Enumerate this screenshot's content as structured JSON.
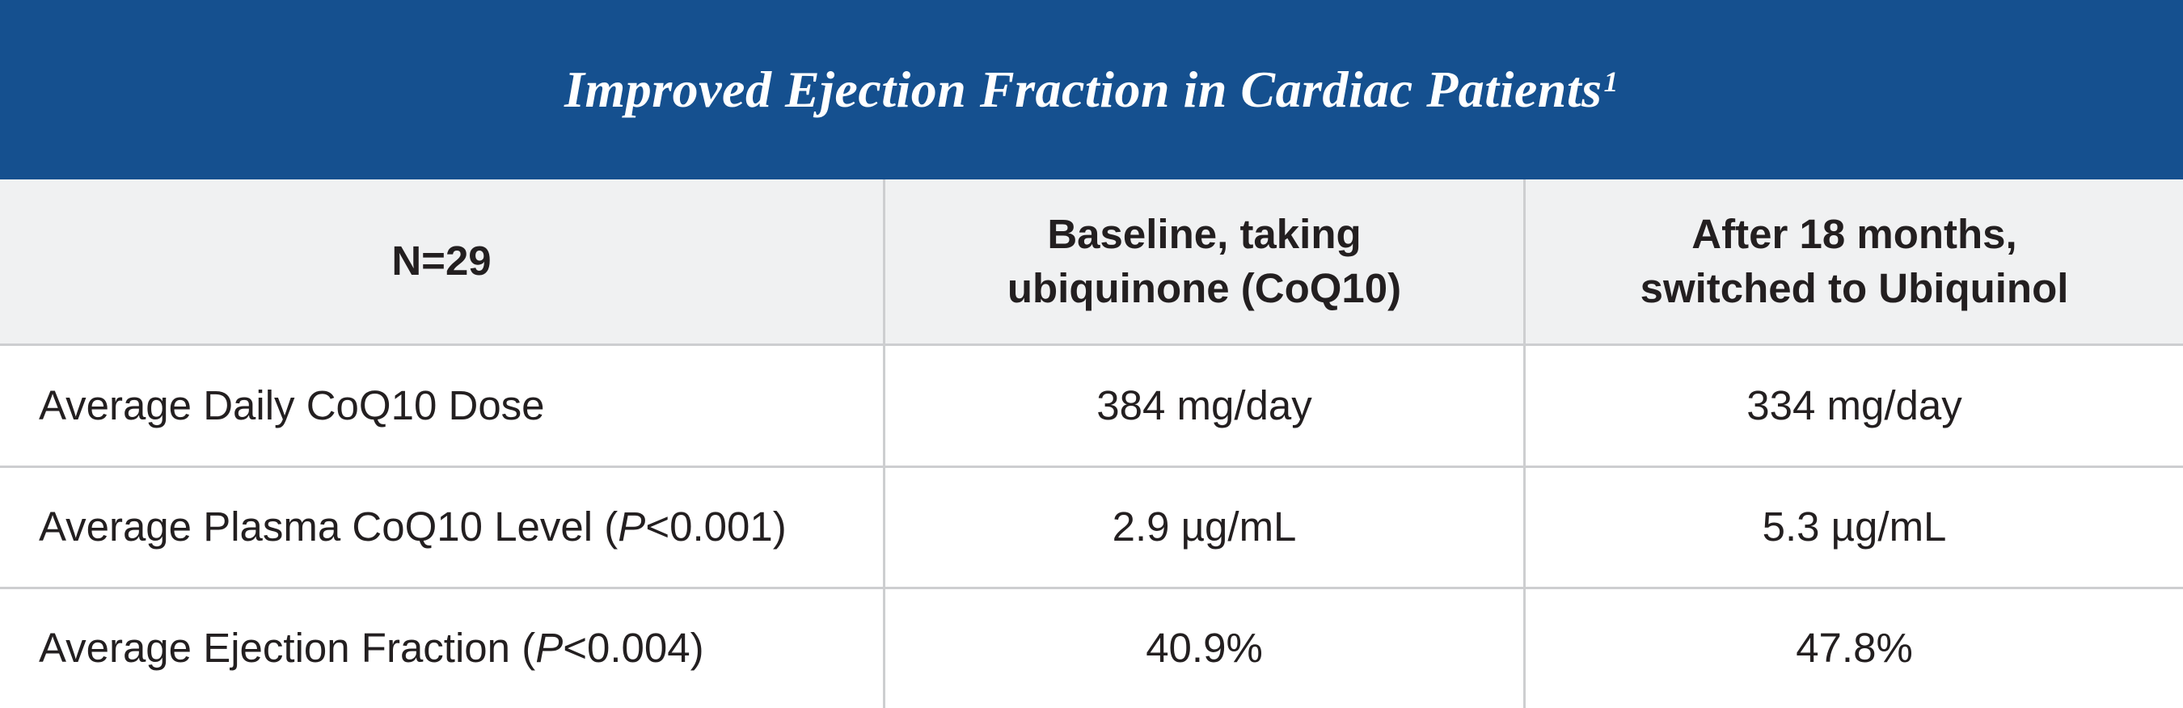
{
  "colors": {
    "banner_blue": "#15508f",
    "banner_text": "#ffffff",
    "header_row_bg": "#f0f1f2",
    "row_bg": "#ffffff",
    "grid_line": "#cdced0",
    "text": "#231f20"
  },
  "chart_data": {
    "type": "table",
    "title": "Improved Ejection Fraction in Cardiac Patients",
    "title_superscript": "1",
    "columns": [
      "N=29",
      "Baseline, taking\nubiquinone (CoQ10)",
      "After 18 months,\nswitched to Ubiquinol"
    ],
    "rows": [
      {
        "label_prefix": "Average Daily CoQ10 Dose",
        "label_p": "",
        "label_suffix": "",
        "values": [
          "384 mg/day",
          "334 mg/day"
        ]
      },
      {
        "label_prefix": "Average Plasma CoQ10 Level (",
        "label_p": "P",
        "label_suffix": "<0.001)",
        "values": [
          "2.9 µg/mL",
          "5.3 µg/mL"
        ]
      },
      {
        "label_prefix": "Average Ejection Fraction (",
        "label_p": "P",
        "label_suffix": "<0.004)",
        "values": [
          "40.9%",
          "47.8%"
        ]
      }
    ]
  }
}
